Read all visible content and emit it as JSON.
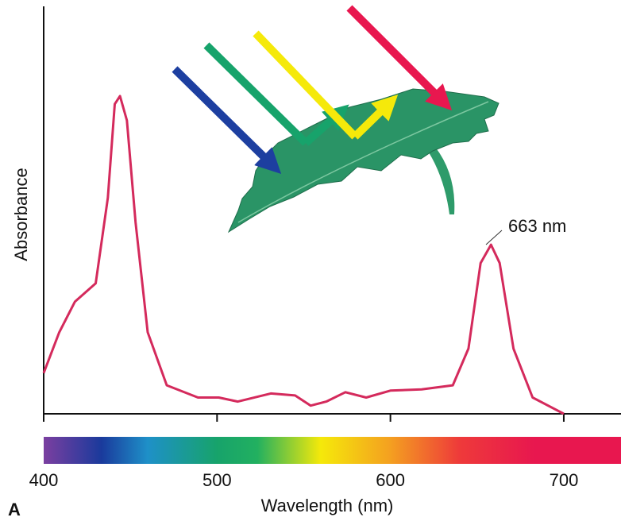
{
  "chart_data": {
    "type": "line",
    "x_label": "Wavelength (nm)",
    "y_label": "Absorbance",
    "panel_label": "A",
    "annotation": "663 nm",
    "x": [
      400,
      409,
      418,
      430,
      437,
      441,
      444,
      448,
      453,
      460,
      471,
      489,
      501,
      512,
      531,
      545,
      554,
      563,
      574,
      586,
      600,
      618,
      636,
      645,
      652,
      658,
      663,
      671,
      682,
      700
    ],
    "series": [
      {
        "color": "#d42a5c",
        "values": [
          10,
          20,
          27.5,
          32,
          53,
          76,
          78,
          72,
          47,
          20,
          7,
          4,
          4,
          3,
          5,
          4.5,
          2,
          3,
          5.3,
          4,
          5.7,
          6,
          7,
          16,
          37,
          41.5,
          37,
          16,
          4,
          0
        ]
      }
    ],
    "xlim": [
      400,
      733
    ],
    "xticks": [
      400,
      500,
      600,
      700
    ],
    "ylim": [
      0,
      100
    ]
  }
}
